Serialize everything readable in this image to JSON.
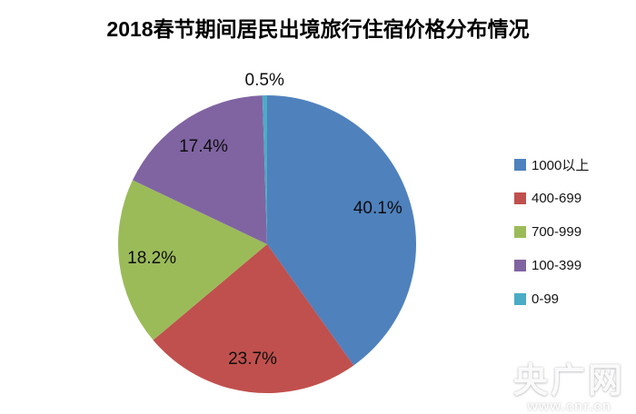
{
  "chart_data": {
    "type": "pie",
    "title": "2018春节期间居民出境旅行住宿价格分布情况",
    "direction": "clockwise",
    "start_angle_deg": 0,
    "legend_position": "right",
    "slices": [
      {
        "name": "1000以上",
        "value": 40.1,
        "label": "40.1%",
        "color": "#4F81BD"
      },
      {
        "name": "400-699",
        "value": 23.7,
        "label": "23.7%",
        "color": "#C0504D"
      },
      {
        "name": "700-999",
        "value": 18.2,
        "label": "18.2%",
        "color": "#9BBB59"
      },
      {
        "name": "100-399",
        "value": 17.4,
        "label": "17.4%",
        "color": "#8064A2"
      },
      {
        "name": "0-99",
        "value": 0.5,
        "label": "0.5%",
        "color": "#4BACC6"
      }
    ]
  },
  "watermark": {
    "brand": "央广网",
    "url": "www.cnr.cn"
  }
}
